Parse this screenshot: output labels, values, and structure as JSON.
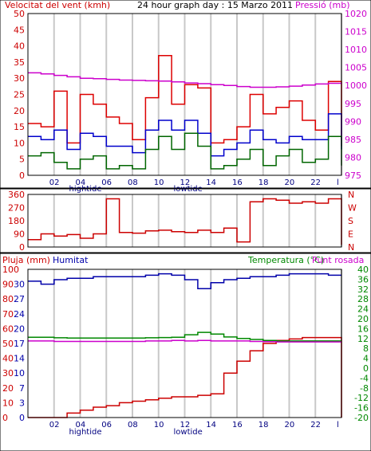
{
  "colors": {
    "wind": "#cc0000",
    "gust": "#dd0000",
    "avg": "#0000cc",
    "min": "#006600",
    "pressure": "#cc00cc",
    "direction": "#cc0000",
    "humidity": "#0000aa",
    "rain": "#cc0000",
    "temperature": "#008800",
    "dewpoint": "#cc00cc",
    "grid": "#c8c8c8",
    "frame": "#000000"
  },
  "chart_data": [
    {
      "type": "line",
      "title": "24 hour graph day : 15 Marzo 2011",
      "left_label": "Velocitat del vent (kmh)",
      "right_label": "Pressió (mb)",
      "x_ticks": [
        "02",
        "04",
        "06",
        "08",
        "10",
        "12",
        "14",
        "16",
        "18",
        "20",
        "22",
        "l"
      ],
      "tide_labels": [
        {
          "text": "hightide",
          "at": "04"
        },
        {
          "text": "lowtide",
          "at": "12"
        }
      ],
      "ylim": [
        0,
        50
      ],
      "y_ticks": [
        0,
        5,
        10,
        15,
        20,
        25,
        30,
        35,
        40,
        45,
        50
      ],
      "y2lim": [
        975,
        1020
      ],
      "y2_ticks": [
        975,
        980,
        985,
        990,
        995,
        1000,
        1005,
        1010,
        1015,
        1020
      ],
      "x": [
        0,
        1,
        2,
        3,
        4,
        5,
        6,
        7,
        8,
        9,
        10,
        11,
        12,
        13,
        14,
        15,
        16,
        17,
        18,
        19,
        20,
        21,
        22,
        23,
        24
      ],
      "series": [
        {
          "role": "gust",
          "values": [
            16,
            15,
            26,
            10,
            25,
            22,
            18,
            16,
            11,
            24,
            37,
            22,
            28,
            27,
            10,
            11,
            15,
            25,
            19,
            21,
            23,
            17,
            14,
            29,
            9
          ]
        },
        {
          "role": "avg",
          "values": [
            12,
            11,
            14,
            8,
            13,
            12,
            9,
            9,
            7,
            14,
            17,
            14,
            17,
            13,
            6,
            8,
            10,
            14,
            11,
            10,
            12,
            11,
            11,
            19,
            8
          ]
        },
        {
          "role": "min",
          "values": [
            6,
            7,
            4,
            2,
            5,
            6,
            2,
            3,
            2,
            8,
            12,
            8,
            13,
            9,
            2,
            3,
            5,
            8,
            3,
            6,
            8,
            4,
            5,
            12,
            3
          ]
        },
        {
          "role": "pressure",
          "axis": "y2",
          "values": [
            1003.5,
            1003.2,
            1002.8,
            1002.4,
            1002.0,
            1001.9,
            1001.7,
            1001.5,
            1001.4,
            1001.3,
            1001.2,
            1001.0,
            1000.7,
            1000.5,
            1000.2,
            1000.0,
            999.7,
            999.5,
            999.5,
            999.6,
            999.8,
            1000.1,
            1000.4,
            1000.6,
            1000.7
          ]
        }
      ]
    },
    {
      "type": "line",
      "left_label": "",
      "ylim": [
        0,
        360
      ],
      "y_ticks": [
        0,
        90,
        180,
        270,
        360
      ],
      "right_tick_labels": [
        "N",
        "W",
        "S",
        "E",
        "N"
      ],
      "x": [
        0,
        1,
        2,
        3,
        4,
        5,
        6,
        7,
        8,
        9,
        10,
        11,
        12,
        13,
        14,
        15,
        16,
        17,
        18,
        19,
        20,
        21,
        22,
        23,
        24
      ],
      "series": [
        {
          "role": "direction",
          "values": [
            50,
            90,
            75,
            85,
            60,
            90,
            330,
            100,
            95,
            110,
            115,
            105,
            100,
            115,
            100,
            130,
            35,
            310,
            330,
            320,
            300,
            310,
            300,
            330,
            15
          ]
        }
      ]
    },
    {
      "type": "line",
      "left_label": "Pluja (mm)",
      "humidity_label": "Humitat",
      "right_label": "Temperatura (°C)",
      "dew_label": "Punt rosada",
      "x_ticks": [
        "02",
        "04",
        "06",
        "08",
        "10",
        "12",
        "14",
        "16",
        "18",
        "20",
        "22",
        "l"
      ],
      "tide_labels": [
        {
          "text": "hightide",
          "at": "04"
        },
        {
          "text": "lowtide",
          "at": "12"
        }
      ],
      "rain_ticks": [
        0,
        10,
        20,
        30,
        40,
        50,
        60,
        70,
        80,
        90,
        100
      ],
      "rain_lim": [
        0,
        100
      ],
      "humidity_ticks": [
        0,
        3,
        7,
        10,
        14,
        17,
        20,
        24,
        27,
        30
      ],
      "temp_ticks": [
        -20,
        -16,
        -12,
        -8,
        -4,
        0,
        4,
        8,
        12,
        16,
        20,
        24,
        28,
        32,
        36,
        40
      ],
      "temp_lim": [
        -20,
        40
      ],
      "x": [
        0,
        1,
        2,
        3,
        4,
        5,
        6,
        7,
        8,
        9,
        10,
        11,
        12,
        13,
        14,
        15,
        16,
        17,
        18,
        19,
        20,
        21,
        22,
        23,
        24
      ],
      "series": [
        {
          "role": "humidity",
          "axis": "rain",
          "values": [
            92,
            90,
            93,
            94,
            94,
            95,
            95,
            95,
            95,
            96,
            97,
            96,
            93,
            87,
            91,
            93,
            94,
            95,
            95,
            96,
            97,
            97,
            97,
            96,
            96
          ]
        },
        {
          "role": "rain",
          "axis": "rain",
          "values": [
            0,
            0,
            0,
            3,
            5,
            7,
            8,
            10,
            11,
            12,
            13,
            14,
            14,
            15,
            16,
            30,
            38,
            45,
            50,
            52,
            53,
            54,
            54,
            54,
            0
          ]
        },
        {
          "role": "temperature",
          "axis": "temp",
          "values": [
            12.5,
            12.5,
            12.3,
            12.2,
            12.2,
            12.2,
            12.2,
            12.2,
            12.2,
            12.3,
            12.4,
            12.5,
            13.5,
            14.5,
            13.8,
            12.6,
            12.0,
            11.6,
            11.2,
            11.0,
            11.0,
            11.0,
            11.0,
            11.0,
            11.0
          ]
        },
        {
          "role": "dewpoint",
          "axis": "temp",
          "values": [
            11.0,
            11.0,
            10.8,
            10.8,
            10.8,
            10.8,
            10.8,
            10.8,
            10.8,
            11.0,
            11.0,
            11.2,
            11.0,
            11.2,
            11.0,
            11.0,
            11.0,
            10.8,
            10.7,
            10.6,
            10.6,
            10.6,
            10.6,
            10.6,
            10.6
          ]
        }
      ]
    }
  ]
}
